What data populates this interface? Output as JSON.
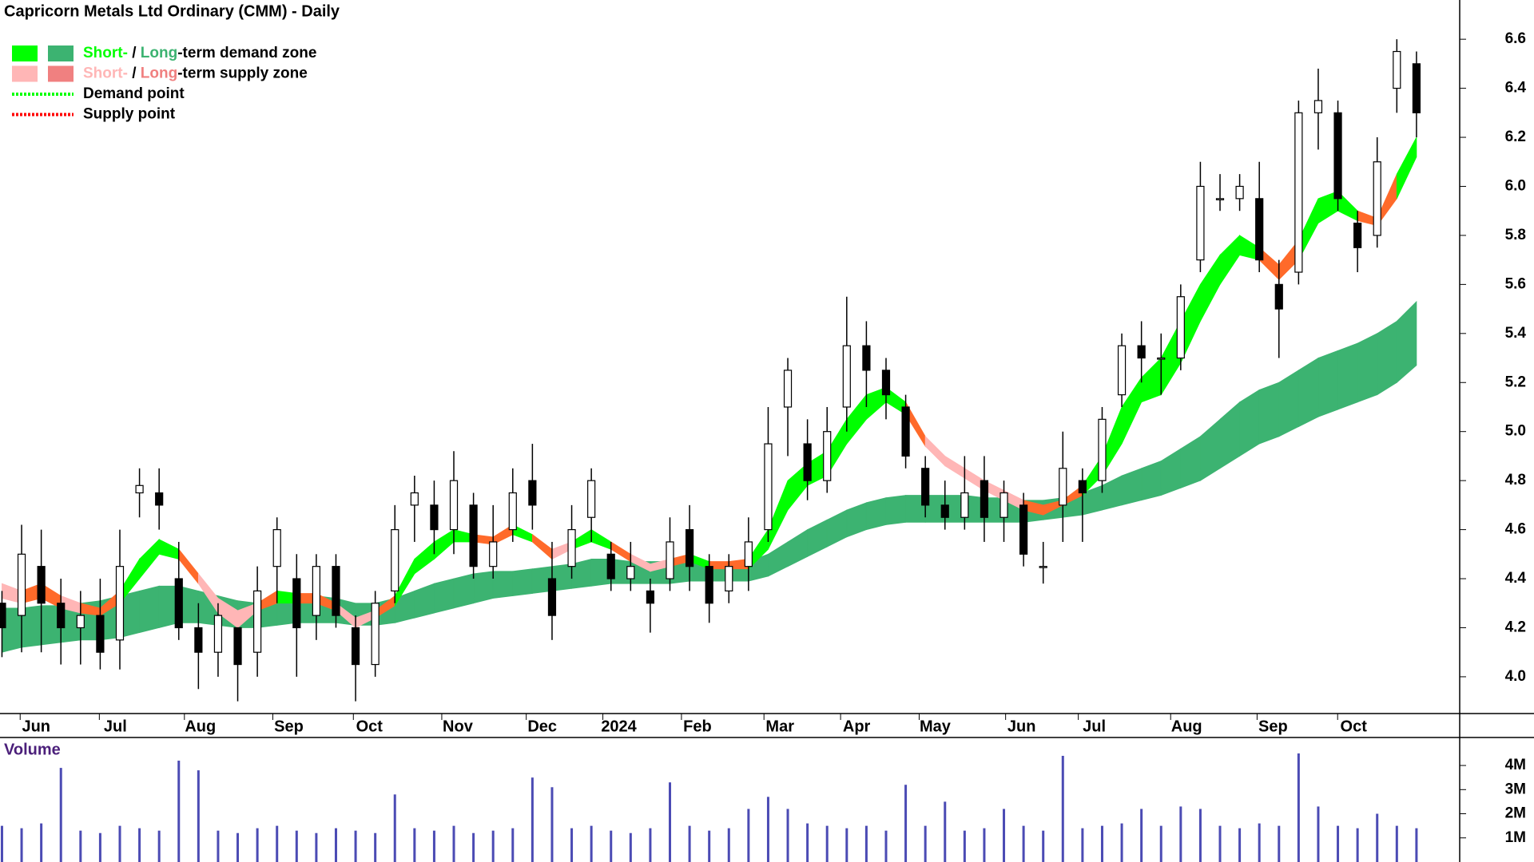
{
  "chart_data": [
    {
      "type": "candlestick",
      "title": "Capricorn Metals Ltd Ordinary (CMM) - Daily",
      "open": [
        4.3,
        4.25,
        4.45,
        4.3,
        4.2,
        4.25,
        4.15,
        4.75,
        4.75,
        4.4,
        4.2,
        4.1,
        4.2,
        4.1,
        4.45,
        4.4,
        4.25,
        4.45,
        4.2,
        4.05,
        4.35,
        4.7,
        4.7,
        4.6,
        4.7,
        4.45,
        4.6,
        4.8,
        4.4,
        4.45,
        4.65,
        4.5,
        4.4,
        4.35,
        4.4,
        4.6,
        4.45,
        4.35,
        4.45,
        4.6,
        5.1,
        4.95,
        4.8,
        5.1,
        5.35,
        5.25,
        5.1,
        4.85,
        4.7,
        4.65,
        4.8,
        4.65,
        4.7,
        4.45,
        4.7,
        4.8,
        4.8,
        5.15,
        5.35,
        5.3,
        5.3,
        5.7,
        5.95,
        5.95,
        5.95,
        5.6,
        5.65,
        6.3,
        6.3,
        5.85,
        5.8,
        6.4,
        6.5
      ],
      "high": [
        4.35,
        4.62,
        4.6,
        4.4,
        4.35,
        4.4,
        4.6,
        4.85,
        4.85,
        4.55,
        4.3,
        4.3,
        4.2,
        4.45,
        4.65,
        4.5,
        4.5,
        4.5,
        4.25,
        4.35,
        4.7,
        4.82,
        4.8,
        4.92,
        4.75,
        4.7,
        4.85,
        4.95,
        4.55,
        4.7,
        4.85,
        4.55,
        4.55,
        4.4,
        4.65,
        4.7,
        4.5,
        4.5,
        4.65,
        5.1,
        5.3,
        5.05,
        5.1,
        5.55,
        5.45,
        5.3,
        5.15,
        4.9,
        4.8,
        4.9,
        4.9,
        4.8,
        4.75,
        4.55,
        5.0,
        4.85,
        5.1,
        5.4,
        5.45,
        5.4,
        5.6,
        6.1,
        6.05,
        6.05,
        6.1,
        5.7,
        6.35,
        6.48,
        6.35,
        5.9,
        6.2,
        6.6,
        6.55
      ],
      "low": [
        4.08,
        4.1,
        4.1,
        4.05,
        4.05,
        4.03,
        4.03,
        4.65,
        4.6,
        4.15,
        3.95,
        4.0,
        3.9,
        4.0,
        4.3,
        4.0,
        4.15,
        4.2,
        3.9,
        4.0,
        4.3,
        4.55,
        4.5,
        4.5,
        4.4,
        4.4,
        4.55,
        4.6,
        4.15,
        4.4,
        4.55,
        4.35,
        4.35,
        4.18,
        4.35,
        4.35,
        4.22,
        4.3,
        4.35,
        4.55,
        4.9,
        4.72,
        4.75,
        5.0,
        5.1,
        5.05,
        4.85,
        4.65,
        4.6,
        4.6,
        4.55,
        4.55,
        4.45,
        4.38,
        4.55,
        4.55,
        4.75,
        5.1,
        5.2,
        5.15,
        5.25,
        5.65,
        5.9,
        5.9,
        5.65,
        5.3,
        5.6,
        6.15,
        5.9,
        5.65,
        5.75,
        6.3,
        6.2
      ],
      "close": [
        4.2,
        4.5,
        4.3,
        4.2,
        4.25,
        4.1,
        4.45,
        4.78,
        4.7,
        4.2,
        4.1,
        4.25,
        4.05,
        4.35,
        4.6,
        4.2,
        4.45,
        4.25,
        4.05,
        4.3,
        4.6,
        4.75,
        4.6,
        4.8,
        4.45,
        4.55,
        4.75,
        4.7,
        4.25,
        4.6,
        4.8,
        4.4,
        4.45,
        4.3,
        4.55,
        4.45,
        4.3,
        4.45,
        4.55,
        4.95,
        5.25,
        4.8,
        5.0,
        5.35,
        5.25,
        5.15,
        4.9,
        4.7,
        4.65,
        4.75,
        4.65,
        4.75,
        4.5,
        4.45,
        4.85,
        4.75,
        5.05,
        5.35,
        5.3,
        5.3,
        5.55,
        6.0,
        5.95,
        6.0,
        5.7,
        5.5,
        6.3,
        6.35,
        5.95,
        5.75,
        6.1,
        6.55,
        6.3
      ],
      "short_upper": [
        4.38,
        4.35,
        4.38,
        4.33,
        4.3,
        4.28,
        4.35,
        4.48,
        4.56,
        4.52,
        4.42,
        4.32,
        4.27,
        4.3,
        4.35,
        4.34,
        4.34,
        4.3,
        4.24,
        4.27,
        4.33,
        4.48,
        4.55,
        4.6,
        4.58,
        4.57,
        4.62,
        4.58,
        4.52,
        4.55,
        4.6,
        4.55,
        4.5,
        4.46,
        4.48,
        4.5,
        4.47,
        4.47,
        4.48,
        4.6,
        4.8,
        4.87,
        4.92,
        5.05,
        5.15,
        5.18,
        5.12,
        4.98,
        4.9,
        4.85,
        4.8,
        4.76,
        4.72,
        4.7,
        4.72,
        4.78,
        4.9,
        5.1,
        5.22,
        5.3,
        5.45,
        5.6,
        5.72,
        5.8,
        5.75,
        5.68,
        5.78,
        5.95,
        5.98,
        5.9,
        5.87,
        6.05,
        6.2
      ],
      "short_lower": [
        4.32,
        4.3,
        4.32,
        4.28,
        4.26,
        4.25,
        4.3,
        4.4,
        4.5,
        4.48,
        4.38,
        4.26,
        4.2,
        4.27,
        4.3,
        4.3,
        4.3,
        4.27,
        4.2,
        4.24,
        4.29,
        4.42,
        4.48,
        4.55,
        4.55,
        4.54,
        4.58,
        4.55,
        4.48,
        4.52,
        4.55,
        4.52,
        4.47,
        4.43,
        4.45,
        4.47,
        4.44,
        4.44,
        4.44,
        4.52,
        4.68,
        4.78,
        4.82,
        4.95,
        5.05,
        5.12,
        5.07,
        4.94,
        4.86,
        4.81,
        4.76,
        4.72,
        4.68,
        4.66,
        4.7,
        4.74,
        4.82,
        4.95,
        5.12,
        5.15,
        5.28,
        5.45,
        5.6,
        5.72,
        5.7,
        5.62,
        5.7,
        5.85,
        5.9,
        5.86,
        5.84,
        5.95,
        6.12
      ],
      "short_colors": [
        "#ffb6b6",
        "#ff6a2a",
        "#ff6a2a",
        "#ffb6b6",
        "#ff6a2a",
        "#ff6a2a",
        "#00ff00",
        "#00ff00",
        "#00ff00",
        "#ff6a2a",
        "#ffb6b6",
        "#ffb6b6",
        "#ffb6b6",
        "#ff6a2a",
        "#00ff00",
        "#ff6a2a",
        "#ff6a2a",
        "#ffb6b6",
        "#ffb6b6",
        "#ff6a2a",
        "#00ff00",
        "#00ff00",
        "#00ff00",
        "#00ff00",
        "#ff6a2a",
        "#ff6a2a",
        "#00ff00",
        "#ff6a2a",
        "#ffb6b6",
        "#00ff00",
        "#00ff00",
        "#ff6a2a",
        "#ffb6b6",
        "#ffb6b6",
        "#ff6a2a",
        "#00ff00",
        "#ff6a2a",
        "#ff6a2a",
        "#00ff00",
        "#00ff00",
        "#00ff00",
        "#00ff00",
        "#00ff00",
        "#00ff00",
        "#00ff00",
        "#00ff00",
        "#ff6a2a",
        "#ffb6b6",
        "#ffb6b6",
        "#ffb6b6",
        "#ffb6b6",
        "#ffb6b6",
        "#ff6a2a",
        "#ff6a2a",
        "#ff6a2a",
        "#00ff00",
        "#00ff00",
        "#00ff00",
        "#00ff00",
        "#00ff00",
        "#00ff00",
        "#00ff00",
        "#00ff00",
        "#00ff00",
        "#ff6a2a",
        "#ff6a2a",
        "#00ff00",
        "#00ff00",
        "#00ff00",
        "#ff6a2a",
        "#ff6a2a",
        "#00ff00",
        "#00ff00"
      ],
      "long_upper": [
        4.28,
        4.28,
        4.29,
        4.29,
        4.3,
        4.31,
        4.33,
        4.35,
        4.37,
        4.37,
        4.35,
        4.33,
        4.31,
        4.3,
        4.32,
        4.33,
        4.33,
        4.32,
        4.3,
        4.3,
        4.32,
        4.35,
        4.38,
        4.4,
        4.42,
        4.43,
        4.43,
        4.44,
        4.45,
        4.46,
        4.48,
        4.48,
        4.47,
        4.47,
        4.47,
        4.48,
        4.47,
        4.46,
        4.47,
        4.5,
        4.55,
        4.6,
        4.64,
        4.68,
        4.71,
        4.73,
        4.74,
        4.74,
        4.74,
        4.74,
        4.73,
        4.73,
        4.72,
        4.72,
        4.73,
        4.75,
        4.78,
        4.82,
        4.85,
        4.88,
        4.93,
        4.98,
        5.05,
        5.12,
        5.17,
        5.2,
        5.25,
        5.3,
        5.33,
        5.36,
        5.4,
        5.45,
        5.53
      ],
      "long_lower": [
        4.1,
        4.12,
        4.13,
        4.14,
        4.15,
        4.15,
        4.16,
        4.18,
        4.2,
        4.22,
        4.22,
        4.21,
        4.2,
        4.2,
        4.21,
        4.22,
        4.22,
        4.22,
        4.21,
        4.21,
        4.22,
        4.24,
        4.26,
        4.28,
        4.3,
        4.32,
        4.33,
        4.34,
        4.35,
        4.36,
        4.37,
        4.38,
        4.38,
        4.38,
        4.38,
        4.39,
        4.39,
        4.39,
        4.39,
        4.41,
        4.45,
        4.49,
        4.53,
        4.57,
        4.6,
        4.62,
        4.63,
        4.63,
        4.63,
        4.63,
        4.63,
        4.63,
        4.63,
        4.64,
        4.65,
        4.66,
        4.68,
        4.7,
        4.72,
        4.74,
        4.77,
        4.8,
        4.85,
        4.9,
        4.95,
        4.98,
        5.02,
        5.06,
        5.09,
        5.12,
        5.15,
        5.2,
        5.27
      ],
      "long_color": "#3cb371",
      "candle_up_color": "#ffffff",
      "candle_down_color": "#000000",
      "xlim": [
        -0.1,
        74.2
      ],
      "xticks": [
        {
          "value": 1.74,
          "label": "Jun"
        },
        {
          "value": 5.77,
          "label": "Jul"
        },
        {
          "value": 10.1,
          "label": "Aug"
        },
        {
          "value": 14.6,
          "label": "Sep"
        },
        {
          "value": 18.7,
          "label": "Oct"
        },
        {
          "value": 23.2,
          "label": "Nov"
        },
        {
          "value": 27.5,
          "label": "Dec"
        },
        {
          "value": 31.4,
          "label": "2024"
        },
        {
          "value": 35.4,
          "label": "Feb"
        },
        {
          "value": 39.6,
          "label": "Mar"
        },
        {
          "value": 43.5,
          "label": "Apr"
        },
        {
          "value": 47.5,
          "label": "May"
        },
        {
          "value": 51.9,
          "label": "Jun"
        },
        {
          "value": 55.6,
          "label": "Jul"
        },
        {
          "value": 60.3,
          "label": "Aug"
        },
        {
          "value": 64.7,
          "label": "Sep"
        },
        {
          "value": 68.8,
          "label": "Oct"
        }
      ],
      "ylim": [
        3.85,
        6.76
      ],
      "yticks": [
        {
          "value": 4,
          "label": "4.0"
        },
        4.2,
        4.4,
        4.6,
        4.8,
        {
          "value": 5,
          "label": "5.0"
        },
        5.2,
        5.4,
        5.6,
        5.8,
        {
          "value": 6,
          "label": "6.0"
        },
        6.2,
        6.4,
        6.6
      ],
      "legend": [
        {
          "swatches": [
            "#00ff00",
            "#3cb371"
          ],
          "parts": [
            {
              "text": "Short-",
              "color": "#00ff00"
            },
            {
              "text": " / ",
              "color": "#000000"
            },
            {
              "text": "Long",
              "color": "#3cb371"
            },
            {
              "text": "-term demand zone",
              "color": "#000000"
            }
          ]
        },
        {
          "swatches": [
            "#ffb6b6",
            "#f08080"
          ],
          "parts": [
            {
              "text": "Short-",
              "color": "#ffb6b6"
            },
            {
              "text": " / ",
              "color": "#000000"
            },
            {
              "text": "Long",
              "color": "#f08080"
            },
            {
              "text": "-term supply zone",
              "color": "#000000"
            }
          ]
        },
        {
          "line_color": "#00ff00",
          "parts": [
            {
              "text": "Demand point",
              "color": "#000000"
            }
          ]
        },
        {
          "line_color": "#ff0000",
          "parts": [
            {
              "text": "Supply point",
              "color": "#000000"
            }
          ]
        }
      ]
    },
    {
      "type": "bar",
      "title": "Volume",
      "color": "#4b4bb4",
      "values": [
        1500000,
        1400000,
        1600000,
        3900000,
        1300000,
        1200000,
        1500000,
        1400000,
        1300000,
        4200000,
        3800000,
        1300000,
        1200000,
        1400000,
        1500000,
        1300000,
        1200000,
        1400000,
        1300000,
        1200000,
        2800000,
        1400000,
        1300000,
        1500000,
        1200000,
        1300000,
        1400000,
        3500000,
        3100000,
        1400000,
        1500000,
        1300000,
        1200000,
        1400000,
        3300000,
        1500000,
        1300000,
        1400000,
        2200000,
        2700000,
        2200000,
        1600000,
        1500000,
        1400000,
        1500000,
        1300000,
        3200000,
        1500000,
        2500000,
        1300000,
        1400000,
        2200000,
        1500000,
        1300000,
        4400000,
        1400000,
        1500000,
        1600000,
        2200000,
        1500000,
        2300000,
        2200000,
        1500000,
        1400000,
        1600000,
        1500000,
        4500000,
        2300000,
        1500000,
        1400000,
        2000000,
        1500000,
        1400000
      ],
      "ylim": [
        0,
        5160000
      ],
      "yticks": [
        {
          "value": 1000000,
          "label": "1M"
        },
        {
          "value": 2000000,
          "label": "2M"
        },
        {
          "value": 3000000,
          "label": "3M"
        },
        {
          "value": 4000000,
          "label": "4M"
        }
      ]
    }
  ]
}
